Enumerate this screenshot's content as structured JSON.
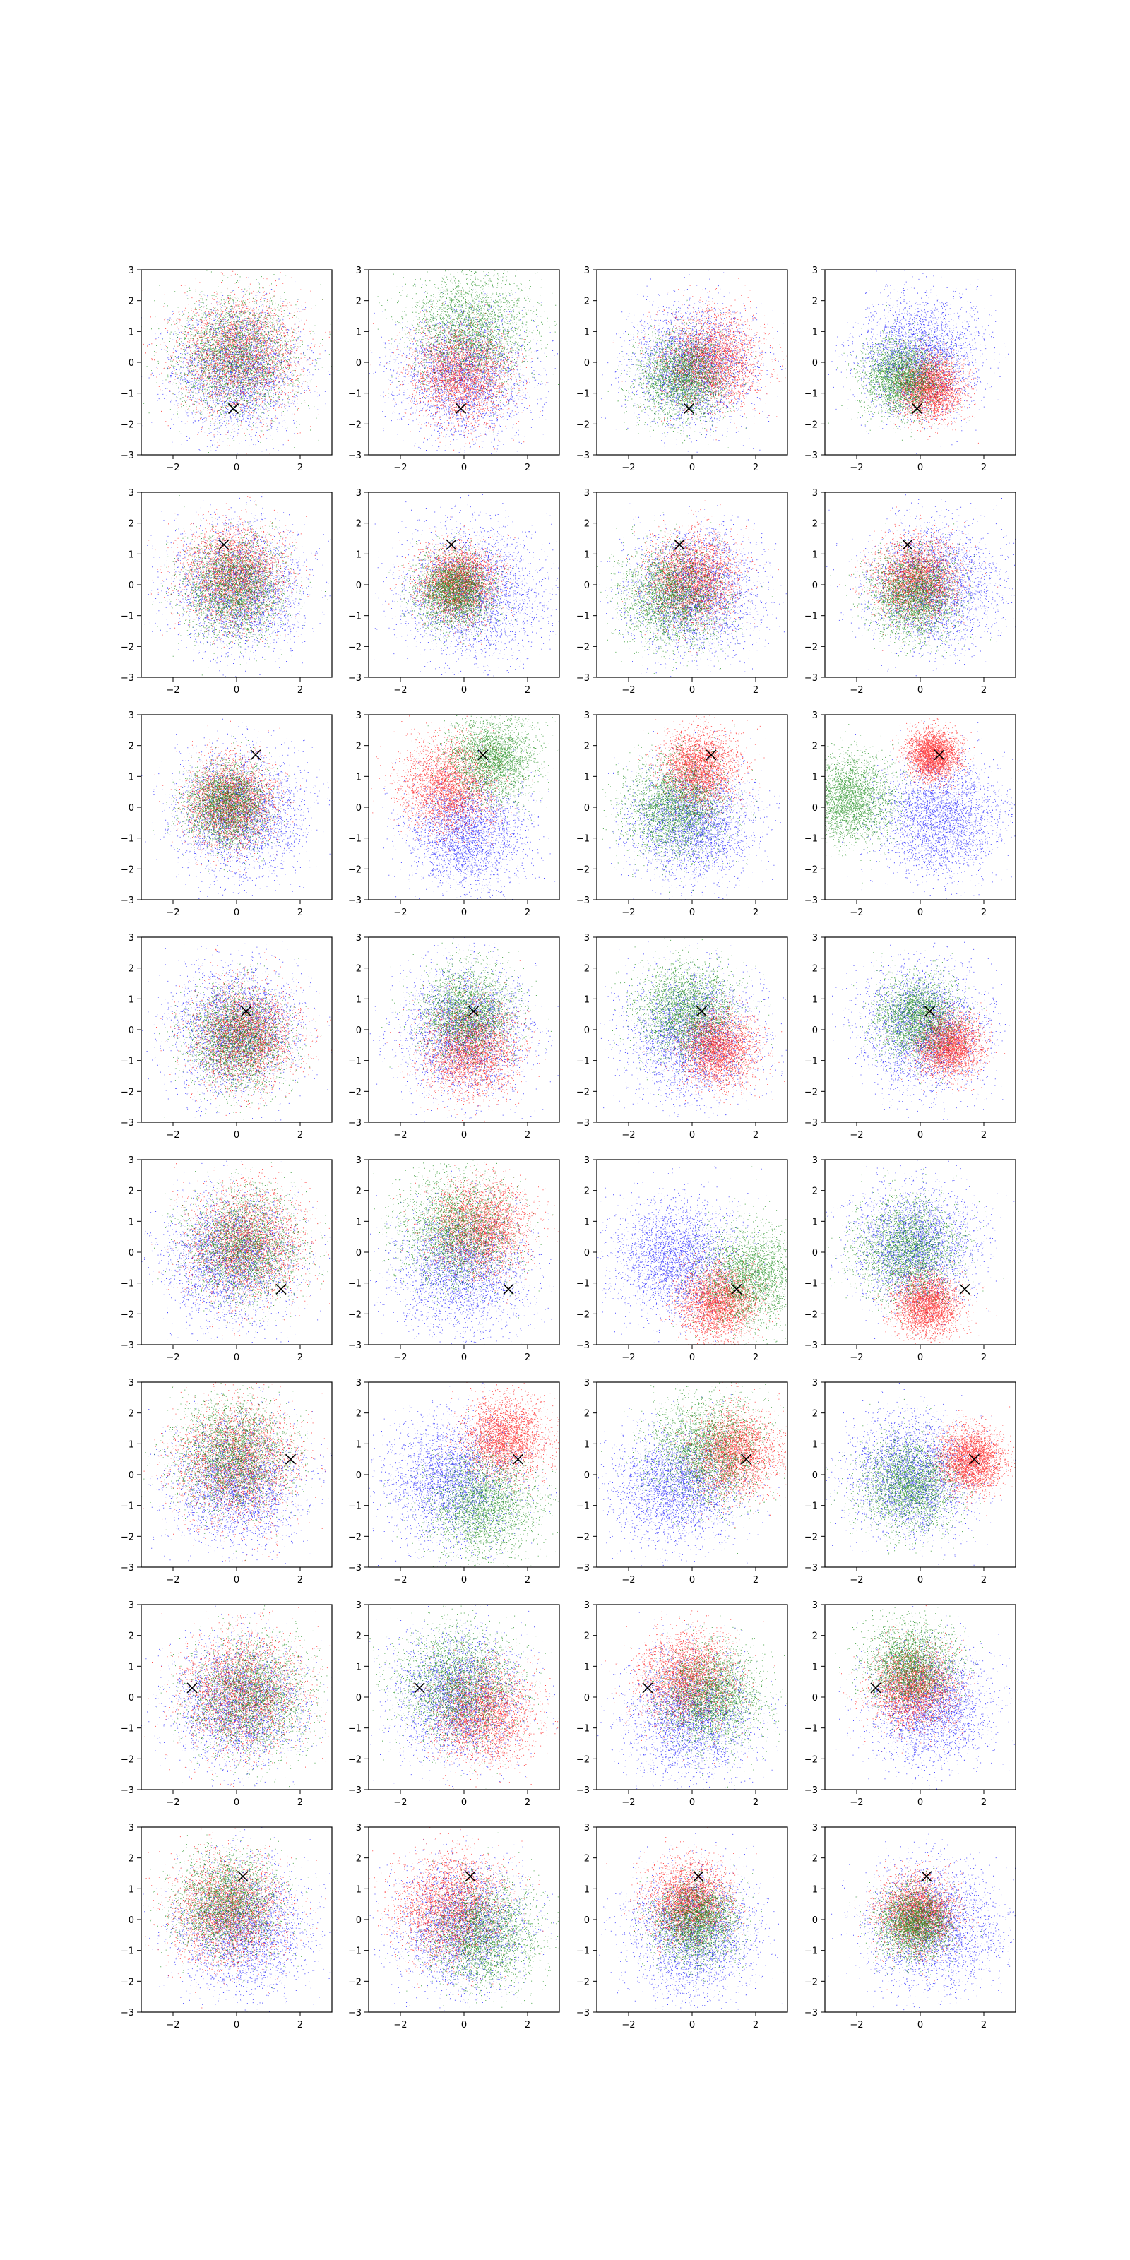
{
  "chart_data": {
    "type": "scatter",
    "layout": {
      "rows": 8,
      "cols": 4
    },
    "xlim": [
      -3,
      3
    ],
    "ylim": [
      -3,
      3
    ],
    "xticks": [
      -2,
      0,
      2
    ],
    "yticks": [
      -3,
      -2,
      -1,
      0,
      1,
      2,
      3
    ],
    "grid": false,
    "legend": "none",
    "series_colors": {
      "blue": "#0000ff",
      "red": "#ff0000",
      "green": "#008000"
    },
    "marker_color": "#000000",
    "marker_symbol": "x",
    "points_per_series": 3000,
    "rows": [
      {
        "marker": [
          -0.1,
          -1.5
        ],
        "panels": [
          {
            "blue": {
              "c": [
                0.0,
                -0.2
              ],
              "s": 1.0
            },
            "red": {
              "c": [
                0.1,
                0.3
              ],
              "s": 0.95
            },
            "green": {
              "c": [
                0.0,
                0.2
              ],
              "s": 0.95
            }
          },
          {
            "blue": {
              "c": [
                0.0,
                -0.4
              ],
              "s": 1.0
            },
            "red": {
              "c": [
                -0.1,
                -0.4
              ],
              "s": 0.8
            },
            "green": {
              "c": [
                0.2,
                1.1
              ],
              "s": 0.95
            }
          },
          {
            "blue": {
              "c": [
                0.0,
                -0.1
              ],
              "s": 0.95
            },
            "red": {
              "c": [
                0.6,
                0.1
              ],
              "s": 0.75
            },
            "green": {
              "c": [
                -0.3,
                -0.5
              ],
              "s": 0.7
            }
          },
          {
            "blue": {
              "c": [
                0.0,
                0.2
              ],
              "s": 0.95
            },
            "red": {
              "c": [
                0.3,
                -0.8
              ],
              "s": 0.5
            },
            "green": {
              "c": [
                -0.6,
                -0.5
              ],
              "s": 0.6
            }
          }
        ]
      },
      {
        "marker": [
          -0.4,
          1.3
        ],
        "panels": [
          {
            "blue": {
              "c": [
                0.1,
                -0.1
              ],
              "s": 1.0
            },
            "red": {
              "c": [
                -0.1,
                0.3
              ],
              "s": 0.8
            },
            "green": {
              "c": [
                -0.1,
                -0.1
              ],
              "s": 0.8
            }
          },
          {
            "blue": {
              "c": [
                0.3,
                -0.3
              ],
              "s": 1.1
            },
            "red": {
              "c": [
                -0.2,
                0.1
              ],
              "s": 0.6
            },
            "green": {
              "c": [
                -0.3,
                -0.2
              ],
              "s": 0.6
            }
          },
          {
            "blue": {
              "c": [
                0.1,
                -0.2
              ],
              "s": 1.0
            },
            "red": {
              "c": [
                0.0,
                0.2
              ],
              "s": 0.7
            },
            "green": {
              "c": [
                -0.6,
                -0.4
              ],
              "s": 0.8
            }
          },
          {
            "blue": {
              "c": [
                0.4,
                0.0
              ],
              "s": 1.0
            },
            "red": {
              "c": [
                -0.1,
                0.2
              ],
              "s": 0.65
            },
            "green": {
              "c": [
                -0.2,
                -0.3
              ],
              "s": 0.7
            }
          }
        ]
      },
      {
        "marker": [
          0.6,
          1.7
        ],
        "panels": [
          {
            "blue": {
              "c": [
                0.1,
                -0.2
              ],
              "s": 1.0
            },
            "red": {
              "c": [
                -0.2,
                0.2
              ],
              "s": 0.7
            },
            "green": {
              "c": [
                -0.3,
                0.1
              ],
              "s": 0.65
            }
          },
          {
            "blue": {
              "c": [
                0.1,
                -0.8
              ],
              "s": 0.9
            },
            "red": {
              "c": [
                -0.5,
                0.7
              ],
              "s": 0.75
            },
            "green": {
              "c": [
                0.9,
                1.6
              ],
              "s": 0.7
            }
          },
          {
            "blue": {
              "c": [
                0.0,
                -0.5
              ],
              "s": 0.95
            },
            "red": {
              "c": [
                0.2,
                1.3
              ],
              "s": 0.6
            },
            "green": {
              "c": [
                -0.5,
                0.0
              ],
              "s": 0.8
            }
          },
          {
            "blue": {
              "c": [
                0.6,
                -0.3
              ],
              "s": 0.95
            },
            "red": {
              "c": [
                0.4,
                1.7
              ],
              "s": 0.4
            },
            "green": {
              "c": [
                -2.2,
                0.3
              ],
              "s": 0.7
            }
          }
        ]
      },
      {
        "marker": [
          0.3,
          0.6
        ],
        "panels": [
          {
            "blue": {
              "c": [
                0.0,
                0.0
              ],
              "s": 1.0
            },
            "red": {
              "c": [
                0.2,
                -0.2
              ],
              "s": 0.8
            },
            "green": {
              "c": [
                0.0,
                -0.3
              ],
              "s": 0.8
            }
          },
          {
            "blue": {
              "c": [
                0.0,
                -0.1
              ],
              "s": 1.0
            },
            "red": {
              "c": [
                0.2,
                -0.6
              ],
              "s": 0.75
            },
            "green": {
              "c": [
                0.1,
                0.5
              ],
              "s": 0.75
            }
          },
          {
            "blue": {
              "c": [
                0.0,
                -0.2
              ],
              "s": 1.0
            },
            "red": {
              "c": [
                0.8,
                -0.6
              ],
              "s": 0.6
            },
            "green": {
              "c": [
                -0.2,
                0.6
              ],
              "s": 0.75
            }
          },
          {
            "blue": {
              "c": [
                0.1,
                0.0
              ],
              "s": 1.0
            },
            "red": {
              "c": [
                0.9,
                -0.5
              ],
              "s": 0.5
            },
            "green": {
              "c": [
                -0.1,
                0.4
              ],
              "s": 0.65
            }
          }
        ]
      },
      {
        "marker": [
          1.4,
          -1.2
        ],
        "panels": [
          {
            "blue": {
              "c": [
                -0.2,
                -0.2
              ],
              "s": 1.0
            },
            "red": {
              "c": [
                0.3,
                0.3
              ],
              "s": 0.9
            },
            "green": {
              "c": [
                0.2,
                0.2
              ],
              "s": 0.9
            }
          },
          {
            "blue": {
              "c": [
                -0.1,
                -0.6
              ],
              "s": 1.0
            },
            "red": {
              "c": [
                0.5,
                0.8
              ],
              "s": 0.75
            },
            "green": {
              "c": [
                -0.2,
                0.7
              ],
              "s": 0.9
            }
          },
          {
            "blue": {
              "c": [
                -0.5,
                -0.2
              ],
              "s": 0.95
            },
            "red": {
              "c": [
                0.8,
                -1.6
              ],
              "s": 0.6
            },
            "green": {
              "c": [
                1.8,
                -0.8
              ],
              "s": 0.8
            }
          },
          {
            "blue": {
              "c": [
                -0.2,
                0.2
              ],
              "s": 0.95
            },
            "red": {
              "c": [
                0.2,
                -1.7
              ],
              "s": 0.5
            },
            "green": {
              "c": [
                -0.4,
                0.1
              ],
              "s": 0.8
            }
          }
        ]
      },
      {
        "marker": [
          1.7,
          0.5
        ],
        "panels": [
          {
            "blue": {
              "c": [
                0.0,
                -0.3
              ],
              "s": 1.0
            },
            "red": {
              "c": [
                0.0,
                0.5
              ],
              "s": 0.95
            },
            "green": {
              "c": [
                -0.1,
                0.6
              ],
              "s": 0.9
            }
          },
          {
            "blue": {
              "c": [
                -0.4,
                -0.2
              ],
              "s": 1.0
            },
            "red": {
              "c": [
                1.3,
                1.2
              ],
              "s": 0.65
            },
            "green": {
              "c": [
                0.6,
                -1.0
              ],
              "s": 0.85
            }
          },
          {
            "blue": {
              "c": [
                -0.5,
                -0.4
              ],
              "s": 0.95
            },
            "red": {
              "c": [
                1.3,
                0.7
              ],
              "s": 0.7
            },
            "green": {
              "c": [
                0.5,
                0.8
              ],
              "s": 0.9
            }
          },
          {
            "blue": {
              "c": [
                -0.3,
                0.0
              ],
              "s": 0.95
            },
            "red": {
              "c": [
                1.6,
                0.5
              ],
              "s": 0.5
            },
            "green": {
              "c": [
                -0.4,
                -0.3
              ],
              "s": 0.75
            }
          }
        ]
      },
      {
        "marker": [
          -1.4,
          0.3
        ],
        "panels": [
          {
            "blue": {
              "c": [
                0.0,
                -0.2
              ],
              "s": 1.0
            },
            "red": {
              "c": [
                0.2,
                0.1
              ],
              "s": 0.95
            },
            "green": {
              "c": [
                0.4,
                0.0
              ],
              "s": 0.95
            }
          },
          {
            "blue": {
              "c": [
                -0.2,
                0.0
              ],
              "s": 1.0
            },
            "red": {
              "c": [
                0.6,
                -0.5
              ],
              "s": 0.8
            },
            "green": {
              "c": [
                -0.2,
                0.4
              ],
              "s": 0.95
            }
          },
          {
            "blue": {
              "c": [
                -0.1,
                -0.6
              ],
              "s": 1.0
            },
            "red": {
              "c": [
                -0.1,
                0.6
              ],
              "s": 0.75
            },
            "green": {
              "c": [
                0.6,
                0.0
              ],
              "s": 0.8
            }
          },
          {
            "blue": {
              "c": [
                0.3,
                -0.3
              ],
              "s": 0.95
            },
            "red": {
              "c": [
                -0.2,
                0.3
              ],
              "s": 0.65
            },
            "green": {
              "c": [
                -0.3,
                1.0
              ],
              "s": 0.7
            }
          }
        ]
      },
      {
        "marker": [
          0.2,
          1.4
        ],
        "panels": [
          {
            "blue": {
              "c": [
                0.2,
                -0.3
              ],
              "s": 1.0
            },
            "red": {
              "c": [
                -0.3,
                0.3
              ],
              "s": 0.85
            },
            "green": {
              "c": [
                -0.3,
                0.5
              ],
              "s": 0.8
            }
          },
          {
            "blue": {
              "c": [
                -0.1,
                -0.2
              ],
              "s": 1.0
            },
            "red": {
              "c": [
                -0.4,
                0.4
              ],
              "s": 0.85
            },
            "green": {
              "c": [
                0.6,
                -0.5
              ],
              "s": 0.85
            }
          },
          {
            "blue": {
              "c": [
                0.0,
                -0.4
              ],
              "s": 1.0
            },
            "red": {
              "c": [
                -0.1,
                0.6
              ],
              "s": 0.65
            },
            "green": {
              "c": [
                0.1,
                -0.1
              ],
              "s": 0.65
            }
          },
          {
            "blue": {
              "c": [
                0.4,
                -0.2
              ],
              "s": 1.0
            },
            "red": {
              "c": [
                -0.1,
                0.2
              ],
              "s": 0.6
            },
            "green": {
              "c": [
                -0.2,
                -0.1
              ],
              "s": 0.55
            }
          }
        ]
      }
    ]
  }
}
